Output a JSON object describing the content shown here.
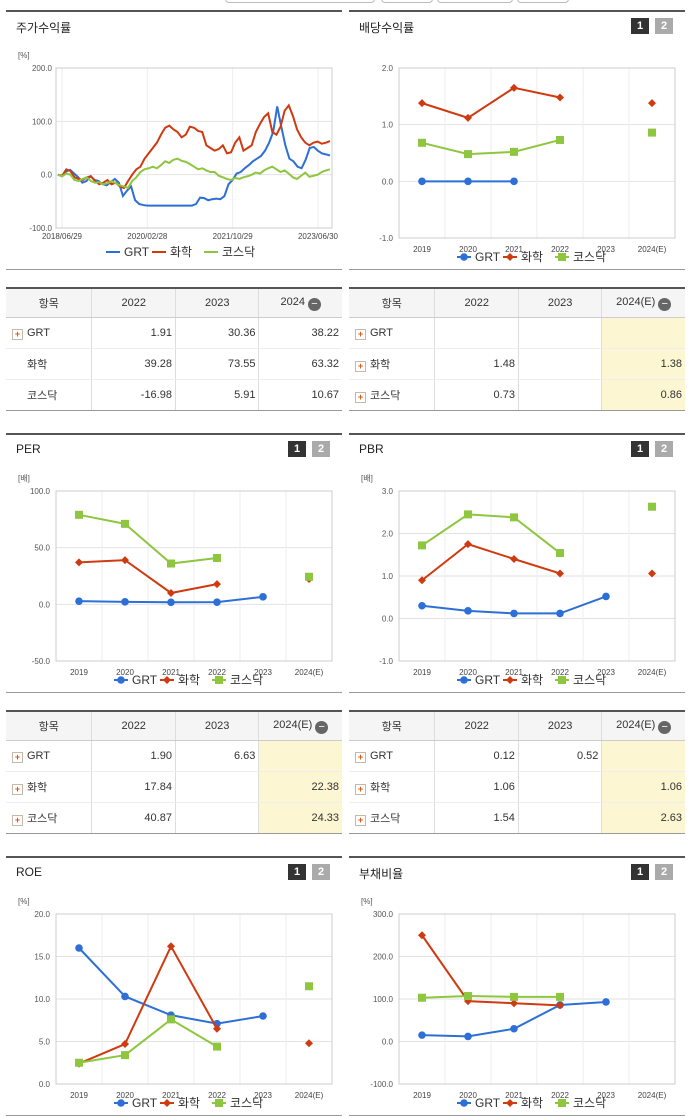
{
  "colors": {
    "GRT": "#2d6fd6",
    "chem": "#d03a10",
    "kosdaq": "#8ec63f",
    "highlight": "#fdf6d2"
  },
  "legend": {
    "grt": "GRT",
    "chem": "화학",
    "kosdaq": "코스닥"
  },
  "charts": {
    "stock": {
      "title": "주가수익률",
      "unit": "[%]",
      "chart_data": {
        "type": "line",
        "x_ticks": [
          "2018/06/29",
          "2020/02/28",
          "2021/10/29",
          "2023/06/30"
        ],
        "ylim": [
          -100,
          200
        ],
        "y_ticks": [
          "200.0",
          "100.0",
          "0.0",
          "-100.0"
        ],
        "series": [
          {
            "name": "GRT",
            "values": [
              0,
              -3,
              6,
              9,
              2,
              -5,
              -15,
              -12,
              -3,
              -10,
              -12,
              -18,
              -20,
              -14,
              -8,
              -15,
              -40,
              -30,
              -22,
              -48,
              -55,
              -57,
              -58,
              -58,
              -58,
              -58,
              -58,
              -58,
              -58,
              -58,
              -58,
              -58,
              -58,
              -58,
              -55,
              -43,
              -44,
              -48,
              -46,
              -45,
              -46,
              -40,
              -18,
              -10,
              2,
              5,
              12,
              18,
              25,
              30,
              35,
              45,
              60,
              80,
              128,
              90,
              55,
              30,
              25,
              15,
              12,
              28,
              50,
              52,
              45,
              40,
              38,
              36
            ]
          },
          {
            "name": "화학",
            "values": [
              0,
              -2,
              10,
              7,
              -5,
              -8,
              -10,
              -5,
              -3,
              -12,
              -18,
              -15,
              -10,
              -18,
              -15,
              -22,
              -25,
              -12,
              0,
              10,
              15,
              30,
              40,
              50,
              60,
              75,
              88,
              92,
              85,
              80,
              70,
              75,
              90,
              88,
              82,
              80,
              55,
              50,
              45,
              48,
              55,
              40,
              42,
              60,
              70,
              45,
              50,
              55,
              80,
              95,
              108,
              115,
              80,
              75,
              90,
              120,
              130,
              110,
              85,
              70,
              60,
              55,
              60,
              62,
              58,
              60,
              63
            ]
          },
          {
            "name": "코스닥",
            "values": [
              0,
              -3,
              2,
              0,
              -10,
              -12,
              -8,
              -5,
              -12,
              -15,
              -14,
              -18,
              -16,
              -12,
              -16,
              -20,
              -22,
              -25,
              -12,
              -5,
              5,
              10,
              12,
              15,
              12,
              18,
              25,
              22,
              28,
              30,
              26,
              24,
              20,
              15,
              10,
              12,
              8,
              5,
              5,
              -2,
              -5,
              -8,
              -10,
              -6,
              -8,
              -5,
              -3,
              0,
              4,
              2,
              8,
              12,
              15,
              10,
              5,
              8,
              2,
              -5,
              -8,
              -2,
              4,
              -4,
              -2,
              0,
              5,
              8,
              10
            ]
          }
        ]
      }
    },
    "dividend": {
      "title": "배당수익률",
      "chart_data": {
        "type": "line",
        "categories": [
          "2019",
          "2020",
          "2021",
          "2022",
          "2023",
          "2024(E)"
        ],
        "ylim": [
          -1,
          2
        ],
        "y_ticks": [
          "2.0",
          "1.0",
          "0.0",
          "-1.0"
        ],
        "series": [
          {
            "name": "GRT",
            "values": [
              0,
              0,
              0,
              null,
              null,
              null
            ]
          },
          {
            "name": "화학",
            "values": [
              1.38,
              1.12,
              1.65,
              1.48,
              null,
              1.38
            ]
          },
          {
            "name": "코스닥",
            "values": [
              0.68,
              0.48,
              0.52,
              0.73,
              null,
              0.86
            ]
          }
        ]
      }
    },
    "per": {
      "title": "PER",
      "unit": "[배]",
      "chart_data": {
        "type": "line",
        "categories": [
          "2019",
          "2020",
          "2021",
          "2022",
          "2023",
          "2024(E)"
        ],
        "ylim": [
          -50,
          100
        ],
        "y_ticks": [
          "100.0",
          "50.0",
          "0.0",
          "-50.0"
        ],
        "series": [
          {
            "name": "GRT",
            "values": [
              2.8,
              2.2,
              1.8,
              1.9,
              6.63,
              null
            ]
          },
          {
            "name": "화학",
            "values": [
              37,
              39,
              10,
              17.84,
              null,
              22.38
            ]
          },
          {
            "name": "코스닥",
            "values": [
              79,
              71,
              36,
              40.87,
              null,
              24.33
            ]
          }
        ]
      }
    },
    "pbr": {
      "title": "PBR",
      "unit": "[배]",
      "chart_data": {
        "type": "line",
        "categories": [
          "2019",
          "2020",
          "2021",
          "2022",
          "2023",
          "2024(E)"
        ],
        "ylim": [
          -1,
          3
        ],
        "y_ticks": [
          "3.0",
          "2.0",
          "1.0",
          "0.0",
          "-1.0"
        ],
        "series": [
          {
            "name": "GRT",
            "values": [
              0.3,
              0.18,
              0.12,
              0.12,
              0.52,
              null
            ]
          },
          {
            "name": "화학",
            "values": [
              0.9,
              1.75,
              1.4,
              1.06,
              null,
              1.06
            ]
          },
          {
            "name": "코스닥",
            "values": [
              1.72,
              2.45,
              2.38,
              1.54,
              null,
              2.63
            ]
          }
        ]
      }
    },
    "roe": {
      "title": "ROE",
      "unit": "[%]",
      "chart_data": {
        "type": "line",
        "categories": [
          "2019",
          "2020",
          "2021",
          "2022",
          "2023",
          "2024(E)"
        ],
        "ylim": [
          0,
          20
        ],
        "y_ticks": [
          "20.0",
          "15.0",
          "10.0",
          "5.0",
          "0.0"
        ],
        "series": [
          {
            "name": "GRT",
            "values": [
              16,
              10.3,
              8.1,
              7.1,
              8,
              null
            ]
          },
          {
            "name": "화학",
            "values": [
              2.4,
              4.7,
              16.2,
              6.5,
              null,
              4.8
            ]
          },
          {
            "name": "코스닥",
            "values": [
              2.5,
              3.4,
              7.6,
              4.4,
              null,
              11.5
            ]
          }
        ]
      }
    },
    "debt": {
      "title": "부채비율",
      "unit": "[%]",
      "chart_data": {
        "type": "line",
        "categories": [
          "2019",
          "2020",
          "2021",
          "2022",
          "2023",
          "2024(E)"
        ],
        "ylim": [
          -100,
          300
        ],
        "y_ticks": [
          "300.0",
          "200.0",
          "100.0",
          "0.0",
          "-100.0"
        ],
        "series": [
          {
            "name": "GRT",
            "values": [
              15,
              12,
              30,
              86,
              93,
              null
            ]
          },
          {
            "name": "화학",
            "values": [
              250,
              95,
              90,
              85,
              null,
              null
            ]
          },
          {
            "name": "코스닥",
            "values": [
              103,
              107,
              105,
              105,
              null,
              null
            ]
          }
        ]
      }
    }
  },
  "tables": {
    "stock": {
      "headers": [
        "항목",
        "2022",
        "2023",
        "2024"
      ],
      "rows": [
        {
          "name": "GRT",
          "expand": true,
          "v": [
            "1.91",
            "30.36",
            "38.22"
          ]
        },
        {
          "name": "화학",
          "expand": false,
          "v": [
            "39.28",
            "73.55",
            "63.32"
          ]
        },
        {
          "name": "코스닥",
          "expand": false,
          "v": [
            "-16.98",
            "5.91",
            "10.67"
          ]
        }
      ]
    },
    "dividend": {
      "headers": [
        "항목",
        "2022",
        "2023",
        "2024(E)"
      ],
      "rows": [
        {
          "name": "GRT",
          "expand": true,
          "v": [
            "",
            "",
            ""
          ]
        },
        {
          "name": "화학",
          "expand": true,
          "v": [
            "1.48",
            "",
            "1.38"
          ]
        },
        {
          "name": "코스닥",
          "expand": true,
          "v": [
            "0.73",
            "",
            "0.86"
          ]
        }
      ]
    },
    "per": {
      "headers": [
        "항목",
        "2022",
        "2023",
        "2024(E)"
      ],
      "rows": [
        {
          "name": "GRT",
          "expand": true,
          "v": [
            "1.90",
            "6.63",
            ""
          ]
        },
        {
          "name": "화학",
          "expand": true,
          "v": [
            "17.84",
            "",
            "22.38"
          ]
        },
        {
          "name": "코스닥",
          "expand": true,
          "v": [
            "40.87",
            "",
            "24.33"
          ]
        }
      ]
    },
    "pbr": {
      "headers": [
        "항목",
        "2022",
        "2023",
        "2024(E)"
      ],
      "rows": [
        {
          "name": "GRT",
          "expand": true,
          "v": [
            "0.12",
            "0.52",
            ""
          ]
        },
        {
          "name": "화학",
          "expand": true,
          "v": [
            "1.06",
            "",
            "1.06"
          ]
        },
        {
          "name": "코스닥",
          "expand": true,
          "v": [
            "1.54",
            "",
            "2.63"
          ]
        }
      ]
    }
  },
  "buttons": {
    "one": "1",
    "two": "2",
    "collapse": "−",
    "expand": "+"
  }
}
